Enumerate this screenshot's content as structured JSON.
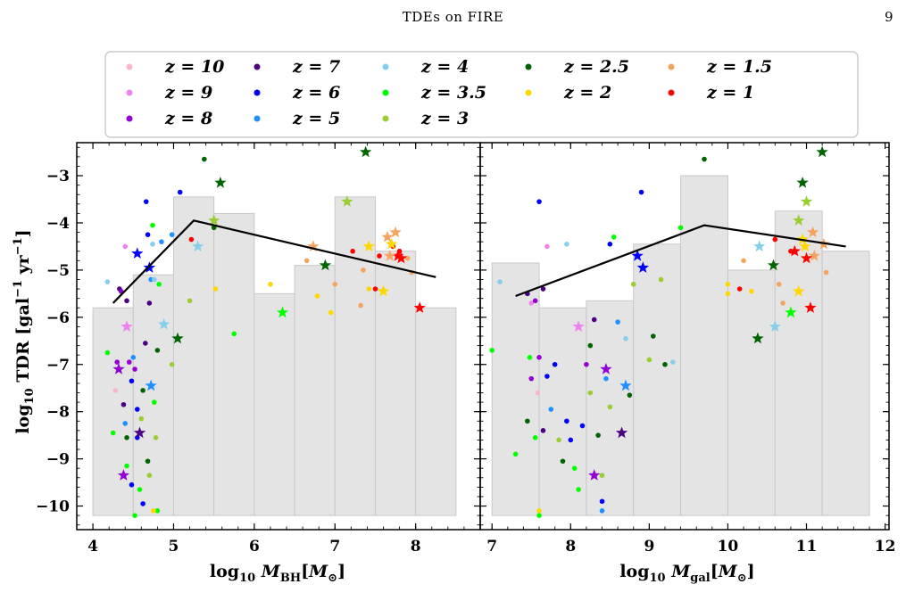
{
  "header": {
    "title": "TDEs on FIRE",
    "page_number": "9"
  },
  "legend": [
    {
      "label": "z = 10",
      "color": "#f7b6d2"
    },
    {
      "label": "z = 7",
      "color": "#4b0082"
    },
    {
      "label": "z = 4",
      "color": "#87ceeb"
    },
    {
      "label": "z = 2.5",
      "color": "#006400"
    },
    {
      "label": "z = 1.5",
      "color": "#f4a460"
    },
    {
      "label": "z = 9",
      "color": "#ee82ee"
    },
    {
      "label": "z = 6",
      "color": "#0000ff"
    },
    {
      "label": "z = 3.5",
      "color": "#00ff00"
    },
    {
      "label": "z = 2",
      "color": "#ffd700"
    },
    {
      "label": "z = 1",
      "color": "#ff0000"
    },
    {
      "label": "z = 8",
      "color": "#9400d3"
    },
    {
      "label": "z = 5",
      "color": "#1e90ff"
    },
    {
      "label": "z = 3",
      "color": "#9acd32"
    }
  ],
  "chart_data": [
    {
      "type": "scatter",
      "xlabel": "log10 M_BH[M_⊙]",
      "ylabel": "log10 TDR [gal^-1 yr^-1]",
      "xlim": [
        3.8,
        8.8
      ],
      "ylim": [
        -10.5,
        -2.3
      ],
      "xticks": [
        "4",
        "5",
        "6",
        "7",
        "8"
      ],
      "yticks": [
        "−3",
        "−4",
        "−5",
        "−6",
        "−7",
        "−8",
        "−9",
        "−10"
      ],
      "histogram": {
        "edges": [
          4.0,
          4.5,
          5.0,
          5.5,
          6.0,
          6.5,
          7.0,
          7.5,
          8.0,
          8.5
        ],
        "values": [
          -5.8,
          -5.1,
          -3.45,
          -3.8,
          -5.5,
          -4.9,
          -3.45,
          -4.6,
          -5.8
        ]
      },
      "median_line": {
        "x": [
          4.25,
          5.25,
          8.25
        ],
        "y": [
          -5.7,
          -3.95,
          -5.15
        ]
      },
      "stars": [
        {
          "x": 4.38,
          "y": -9.35,
          "z": "8"
        },
        {
          "x": 4.32,
          "y": -7.1,
          "z": "8"
        },
        {
          "x": 4.42,
          "y": -6.2,
          "z": "9"
        },
        {
          "x": 4.55,
          "y": -4.65,
          "z": "6"
        },
        {
          "x": 4.7,
          "y": -4.95,
          "z": "6"
        },
        {
          "x": 4.58,
          "y": -8.45,
          "z": "7"
        },
        {
          "x": 4.72,
          "y": -7.45,
          "z": "5"
        },
        {
          "x": 4.88,
          "y": -6.15,
          "z": "4"
        },
        {
          "x": 5.05,
          "y": -6.45,
          "z": "2.5"
        },
        {
          "x": 5.3,
          "y": -4.5,
          "z": "4"
        },
        {
          "x": 5.5,
          "y": -3.95,
          "z": "3"
        },
        {
          "x": 5.58,
          "y": -3.15,
          "z": "2.5"
        },
        {
          "x": 6.35,
          "y": -5.9,
          "z": "3.5"
        },
        {
          "x": 6.73,
          "y": -4.5,
          "z": "1.5"
        },
        {
          "x": 6.88,
          "y": -4.9,
          "z": "2.5"
        },
        {
          "x": 7.15,
          "y": -3.55,
          "z": "3"
        },
        {
          "x": 7.38,
          "y": -2.5,
          "z": "2.5"
        },
        {
          "x": 7.42,
          "y": -4.5,
          "z": "2"
        },
        {
          "x": 7.6,
          "y": -5.45,
          "z": "2"
        },
        {
          "x": 7.65,
          "y": -4.3,
          "z": "1.5"
        },
        {
          "x": 7.7,
          "y": -4.45,
          "z": "2"
        },
        {
          "x": 7.75,
          "y": -4.2,
          "z": "1.5"
        },
        {
          "x": 7.78,
          "y": -4.7,
          "z": "1"
        },
        {
          "x": 7.68,
          "y": -4.7,
          "z": "1.5"
        },
        {
          "x": 7.82,
          "y": -4.75,
          "z": "1"
        },
        {
          "x": 8.05,
          "y": -5.8,
          "z": "1"
        }
      ],
      "dots": [
        {
          "x": 4.18,
          "y": -5.25,
          "z": "4"
        },
        {
          "x": 4.28,
          "y": -7.55,
          "z": "10"
        },
        {
          "x": 4.33,
          "y": -5.4,
          "z": "7"
        },
        {
          "x": 4.35,
          "y": -5.45,
          "z": "8"
        },
        {
          "x": 4.4,
          "y": -4.5,
          "z": "9"
        },
        {
          "x": 4.42,
          "y": -5.65,
          "z": "7"
        },
        {
          "x": 4.3,
          "y": -6.95,
          "z": "8"
        },
        {
          "x": 4.25,
          "y": -8.45,
          "z": "3.5"
        },
        {
          "x": 4.18,
          "y": -6.75,
          "z": "3.5"
        },
        {
          "x": 4.38,
          "y": -7.85,
          "z": "7"
        },
        {
          "x": 4.4,
          "y": -8.25,
          "z": "5"
        },
        {
          "x": 4.42,
          "y": -8.55,
          "z": "2.5"
        },
        {
          "x": 4.45,
          "y": -6.95,
          "z": "8"
        },
        {
          "x": 4.48,
          "y": -7.35,
          "z": "6"
        },
        {
          "x": 4.5,
          "y": -6.85,
          "z": "5"
        },
        {
          "x": 4.52,
          "y": -7.1,
          "z": "8"
        },
        {
          "x": 4.55,
          "y": -7.95,
          "z": "6"
        },
        {
          "x": 4.55,
          "y": -8.55,
          "z": "6"
        },
        {
          "x": 4.58,
          "y": -9.65,
          "z": "3.5"
        },
        {
          "x": 4.6,
          "y": -8.15,
          "z": "3"
        },
        {
          "x": 4.62,
          "y": -7.55,
          "z": "2.5"
        },
        {
          "x": 4.65,
          "y": -6.55,
          "z": "7"
        },
        {
          "x": 4.66,
          "y": -3.55,
          "z": "6"
        },
        {
          "x": 4.68,
          "y": -4.25,
          "z": "6"
        },
        {
          "x": 4.7,
          "y": -5.7,
          "z": "7"
        },
        {
          "x": 4.72,
          "y": -5.2,
          "z": "5"
        },
        {
          "x": 4.74,
          "y": -4.45,
          "z": "4"
        },
        {
          "x": 4.74,
          "y": -4.05,
          "z": "3.5"
        },
        {
          "x": 4.76,
          "y": -5.2,
          "z": "4"
        },
        {
          "x": 4.76,
          "y": -7.8,
          "z": "3.5"
        },
        {
          "x": 4.78,
          "y": -8.55,
          "z": "3"
        },
        {
          "x": 4.8,
          "y": -10.1,
          "z": "3.5"
        },
        {
          "x": 4.75,
          "y": -10.1,
          "z": "2"
        },
        {
          "x": 4.7,
          "y": -9.35,
          "z": "3"
        },
        {
          "x": 4.68,
          "y": -9.05,
          "z": "2.5"
        },
        {
          "x": 4.62,
          "y": -9.95,
          "z": "6"
        },
        {
          "x": 4.52,
          "y": -10.2,
          "z": "3.5"
        },
        {
          "x": 4.48,
          "y": -9.55,
          "z": "6"
        },
        {
          "x": 4.42,
          "y": -9.15,
          "z": "3.5"
        },
        {
          "x": 4.8,
          "y": -6.7,
          "z": "2.5"
        },
        {
          "x": 4.82,
          "y": -5.3,
          "z": "3.5"
        },
        {
          "x": 4.85,
          "y": -4.4,
          "z": "5"
        },
        {
          "x": 4.98,
          "y": -4.25,
          "z": "5"
        },
        {
          "x": 4.98,
          "y": -7.0,
          "z": "3"
        },
        {
          "x": 5.08,
          "y": -3.35,
          "z": "6"
        },
        {
          "x": 5.22,
          "y": -4.35,
          "z": "1"
        },
        {
          "x": 5.2,
          "y": -5.65,
          "z": "3"
        },
        {
          "x": 5.38,
          "y": -2.65,
          "z": "2.5"
        },
        {
          "x": 5.52,
          "y": -5.4,
          "z": "2"
        },
        {
          "x": 5.75,
          "y": -6.35,
          "z": "3.5"
        },
        {
          "x": 5.5,
          "y": -4.1,
          "z": "2.5"
        },
        {
          "x": 6.2,
          "y": -5.3,
          "z": "2"
        },
        {
          "x": 6.65,
          "y": -4.8,
          "z": "1.5"
        },
        {
          "x": 6.78,
          "y": -5.55,
          "z": "2"
        },
        {
          "x": 6.95,
          "y": -5.9,
          "z": "2"
        },
        {
          "x": 7.0,
          "y": -5.3,
          "z": "1.5"
        },
        {
          "x": 7.22,
          "y": -4.6,
          "z": "1"
        },
        {
          "x": 7.32,
          "y": -5.75,
          "z": "1.5"
        },
        {
          "x": 7.42,
          "y": -5.4,
          "z": "2"
        },
        {
          "x": 7.5,
          "y": -5.4,
          "z": "1"
        },
        {
          "x": 7.55,
          "y": -4.7,
          "z": "1"
        },
        {
          "x": 7.72,
          "y": -4.5,
          "z": "1"
        },
        {
          "x": 7.8,
          "y": -4.6,
          "z": "1"
        },
        {
          "x": 7.9,
          "y": -4.75,
          "z": "1.5"
        },
        {
          "x": 7.95,
          "y": -5.05,
          "z": "1.5"
        },
        {
          "x": 7.35,
          "y": -5.0,
          "z": "1.5"
        }
      ]
    },
    {
      "type": "scatter",
      "xlabel": "log10 M_gal[M_⊙]",
      "ylabel": "",
      "xlim": [
        6.85,
        12.05
      ],
      "ylim": [
        -10.5,
        -2.3
      ],
      "xticks": [
        "7",
        "8",
        "9",
        "10",
        "11",
        "12"
      ],
      "histogram": {
        "edges": [
          7.0,
          7.6,
          8.2,
          8.8,
          9.4,
          10.0,
          10.6,
          11.2,
          11.8
        ],
        "values": [
          -4.85,
          -5.8,
          -5.65,
          -4.45,
          -3.0,
          -5.0,
          -3.75,
          -4.6
        ]
      },
      "median_line": {
        "x": [
          7.3,
          9.7,
          11.5
        ],
        "y": [
          -5.55,
          -4.05,
          -4.5
        ]
      },
      "stars": [
        {
          "x": 8.3,
          "y": -9.35,
          "z": "8"
        },
        {
          "x": 8.45,
          "y": -7.1,
          "z": "8"
        },
        {
          "x": 8.1,
          "y": -6.2,
          "z": "9"
        },
        {
          "x": 8.85,
          "y": -4.7,
          "z": "6"
        },
        {
          "x": 8.92,
          "y": -4.95,
          "z": "6"
        },
        {
          "x": 8.65,
          "y": -8.45,
          "z": "7"
        },
        {
          "x": 8.7,
          "y": -7.45,
          "z": "5"
        },
        {
          "x": 10.6,
          "y": -6.2,
          "z": "4"
        },
        {
          "x": 10.38,
          "y": -6.45,
          "z": "2.5"
        },
        {
          "x": 10.4,
          "y": -4.5,
          "z": "4"
        },
        {
          "x": 10.9,
          "y": -3.95,
          "z": "3"
        },
        {
          "x": 10.95,
          "y": -3.15,
          "z": "2.5"
        },
        {
          "x": 10.8,
          "y": -5.9,
          "z": "3.5"
        },
        {
          "x": 11.08,
          "y": -4.2,
          "z": "1.5"
        },
        {
          "x": 10.58,
          "y": -4.9,
          "z": "2.5"
        },
        {
          "x": 11.0,
          "y": -3.55,
          "z": "3"
        },
        {
          "x": 11.2,
          "y": -2.5,
          "z": "2.5"
        },
        {
          "x": 10.98,
          "y": -4.5,
          "z": "2"
        },
        {
          "x": 10.9,
          "y": -5.45,
          "z": "2"
        },
        {
          "x": 11.22,
          "y": -4.45,
          "z": "1.5"
        },
        {
          "x": 10.95,
          "y": -4.35,
          "z": "2"
        },
        {
          "x": 11.1,
          "y": -4.7,
          "z": "1.5"
        },
        {
          "x": 11.0,
          "y": -4.75,
          "z": "1"
        },
        {
          "x": 11.05,
          "y": -5.8,
          "z": "1"
        },
        {
          "x": 10.85,
          "y": -4.6,
          "z": "1"
        }
      ],
      "dots": [
        {
          "x": 7.1,
          "y": -5.25,
          "z": "4"
        },
        {
          "x": 7.0,
          "y": -6.7,
          "z": "3.5"
        },
        {
          "x": 7.45,
          "y": -5.5,
          "z": "7"
        },
        {
          "x": 7.65,
          "y": -5.4,
          "z": "7"
        },
        {
          "x": 7.5,
          "y": -5.7,
          "z": "9"
        },
        {
          "x": 7.55,
          "y": -5.65,
          "z": "8"
        },
        {
          "x": 7.48,
          "y": -6.85,
          "z": "3.5"
        },
        {
          "x": 7.6,
          "y": -6.85,
          "z": "8"
        },
        {
          "x": 7.5,
          "y": -7.3,
          "z": "8"
        },
        {
          "x": 7.58,
          "y": -7.6,
          "z": "10"
        },
        {
          "x": 7.7,
          "y": -7.25,
          "z": "6"
        },
        {
          "x": 7.8,
          "y": -7.0,
          "z": "6"
        },
        {
          "x": 7.75,
          "y": -7.95,
          "z": "5"
        },
        {
          "x": 7.45,
          "y": -8.2,
          "z": "2.5"
        },
        {
          "x": 7.55,
          "y": -8.55,
          "z": "3.5"
        },
        {
          "x": 7.3,
          "y": -8.9,
          "z": "3.5"
        },
        {
          "x": 7.65,
          "y": -8.4,
          "z": "7"
        },
        {
          "x": 7.85,
          "y": -8.6,
          "z": "3"
        },
        {
          "x": 7.9,
          "y": -9.05,
          "z": "2.5"
        },
        {
          "x": 7.95,
          "y": -8.2,
          "z": "6"
        },
        {
          "x": 7.6,
          "y": -3.55,
          "z": "6"
        },
        {
          "x": 7.7,
          "y": -4.5,
          "z": "9"
        },
        {
          "x": 7.95,
          "y": -4.45,
          "z": "4"
        },
        {
          "x": 8.0,
          "y": -8.6,
          "z": "6"
        },
        {
          "x": 8.05,
          "y": -9.2,
          "z": "3.5"
        },
        {
          "x": 8.1,
          "y": -9.65,
          "z": "3.5"
        },
        {
          "x": 8.15,
          "y": -8.3,
          "z": "6"
        },
        {
          "x": 7.6,
          "y": -10.1,
          "z": "2"
        },
        {
          "x": 7.6,
          "y": -10.2,
          "z": "3.5"
        },
        {
          "x": 8.2,
          "y": -7.0,
          "z": "8"
        },
        {
          "x": 8.25,
          "y": -6.6,
          "z": "2.5"
        },
        {
          "x": 8.25,
          "y": -7.6,
          "z": "3"
        },
        {
          "x": 8.3,
          "y": -6.05,
          "z": "7"
        },
        {
          "x": 8.35,
          "y": -8.5,
          "z": "2.5"
        },
        {
          "x": 8.4,
          "y": -9.35,
          "z": "3"
        },
        {
          "x": 8.45,
          "y": -7.3,
          "z": "5"
        },
        {
          "x": 8.5,
          "y": -4.45,
          "z": "6"
        },
        {
          "x": 8.5,
          "y": -7.9,
          "z": "3"
        },
        {
          "x": 8.55,
          "y": -4.3,
          "z": "3.5"
        },
        {
          "x": 8.6,
          "y": -6.1,
          "z": "5"
        },
        {
          "x": 8.7,
          "y": -6.45,
          "z": "4"
        },
        {
          "x": 8.75,
          "y": -7.65,
          "z": "2.5"
        },
        {
          "x": 8.8,
          "y": -5.3,
          "z": "3"
        },
        {
          "x": 8.4,
          "y": -9.9,
          "z": "6"
        },
        {
          "x": 8.4,
          "y": -10.1,
          "z": "5"
        },
        {
          "x": 8.9,
          "y": -3.35,
          "z": "6"
        },
        {
          "x": 9.0,
          "y": -6.9,
          "z": "3"
        },
        {
          "x": 9.05,
          "y": -6.4,
          "z": "2.5"
        },
        {
          "x": 9.15,
          "y": -5.2,
          "z": "3"
        },
        {
          "x": 9.2,
          "y": -7.0,
          "z": "2.5"
        },
        {
          "x": 9.3,
          "y": -6.95,
          "z": "4"
        },
        {
          "x": 9.4,
          "y": -4.1,
          "z": "3.5"
        },
        {
          "x": 9.7,
          "y": -2.65,
          "z": "2.5"
        },
        {
          "x": 10.0,
          "y": -5.3,
          "z": "2"
        },
        {
          "x": 10.0,
          "y": -5.5,
          "z": "2"
        },
        {
          "x": 10.15,
          "y": -5.4,
          "z": "1"
        },
        {
          "x": 10.2,
          "y": -4.8,
          "z": "1.5"
        },
        {
          "x": 10.3,
          "y": -5.45,
          "z": "2"
        },
        {
          "x": 10.6,
          "y": -4.35,
          "z": "1"
        },
        {
          "x": 10.65,
          "y": -5.3,
          "z": "1.5"
        },
        {
          "x": 10.7,
          "y": -5.7,
          "z": "1.5"
        },
        {
          "x": 10.8,
          "y": -4.6,
          "z": "1"
        },
        {
          "x": 11.25,
          "y": -5.05,
          "z": "1.5"
        }
      ]
    }
  ]
}
